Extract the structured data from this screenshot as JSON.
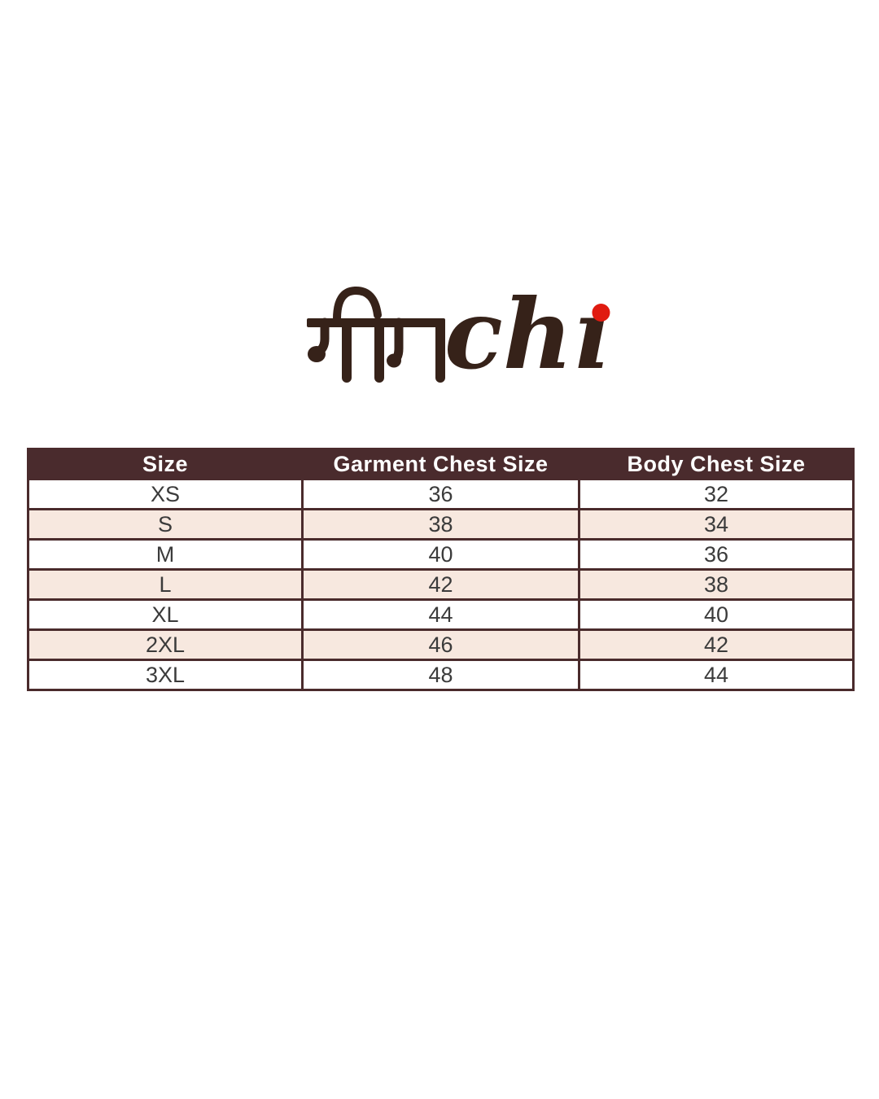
{
  "logo": {
    "devanagari_text": "मीन",
    "latin_text": "chi",
    "latin_display": "chı",
    "text_color": "#362219",
    "dot_color": "#e01b10"
  },
  "chart_data": {
    "type": "table",
    "columns": [
      "Size",
      "Garment Chest Size",
      "Body Chest Size"
    ],
    "rows": [
      [
        "XS",
        "36",
        "32"
      ],
      [
        "S",
        "38",
        "34"
      ],
      [
        "M",
        "40",
        "36"
      ],
      [
        "L",
        "42",
        "38"
      ],
      [
        "XL",
        "44",
        "40"
      ],
      [
        "2XL",
        "46",
        "42"
      ],
      [
        "3XL",
        "48",
        "44"
      ]
    ],
    "layout": {
      "header_position": "top",
      "alternating_rows": true,
      "alt_row_indices": [
        1,
        3,
        5
      ]
    }
  },
  "style": {
    "header_bg": "#4a2b2d",
    "header_text": "#ffffff",
    "row_bg": "#ffffff",
    "row_alt_bg": "#f7e8df",
    "border_color": "#4a2b2c",
    "cell_text": "#3b3b3b",
    "page_bg": "#ffffff"
  }
}
